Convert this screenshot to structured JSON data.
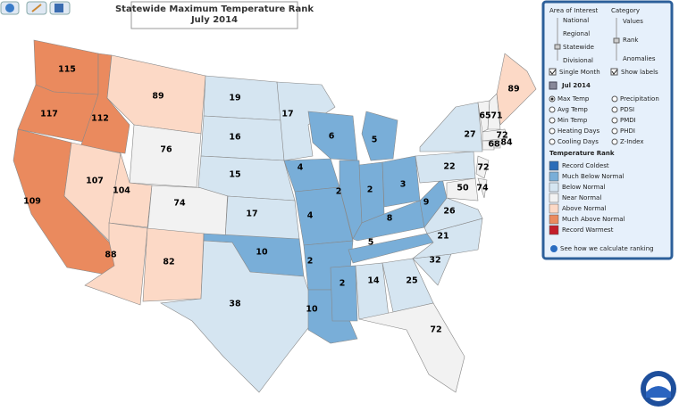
{
  "title": "Statewide Maximum Temperature Rank",
  "subtitle": "July 2014",
  "map": {
    "regions": [
      {
        "value": 115,
        "color": "#ea8a5e"
      },
      {
        "value": 117,
        "color": "#ea8a5e"
      },
      {
        "value": 112,
        "color": "#ea8a5e"
      },
      {
        "value": 109,
        "color": "#ea8a5e"
      },
      {
        "value": 107,
        "color": "#fcd9c6"
      },
      {
        "value": 89,
        "color": "#fcd9c6"
      },
      {
        "value": 76,
        "color": "#f2f2f2"
      },
      {
        "value": 104,
        "color": "#fcd9c6"
      },
      {
        "value": 74,
        "color": "#f2f2f2"
      },
      {
        "value": 88,
        "color": "#fcd9c6"
      },
      {
        "value": 82,
        "color": "#fcd9c6"
      },
      {
        "value": 19,
        "color": "#d5e5f1"
      },
      {
        "value": 16,
        "color": "#d5e5f1"
      },
      {
        "value": 15,
        "color": "#d5e5f1"
      },
      {
        "value": 17,
        "color": "#d5e5f1"
      },
      {
        "value": 10,
        "color": "#79aed8"
      },
      {
        "value": 38,
        "color": "#d5e5f1"
      },
      {
        "value": 17,
        "color": "#d5e5f1"
      },
      {
        "value": 4,
        "color": "#79aed8"
      },
      {
        "value": 4,
        "color": "#79aed8"
      },
      {
        "value": 2,
        "color": "#79aed8"
      },
      {
        "value": 10,
        "color": "#79aed8"
      },
      {
        "value": 6,
        "color": "#79aed8"
      },
      {
        "value": 2,
        "color": "#79aed8"
      },
      {
        "value": 2,
        "color": "#79aed8"
      },
      {
        "value": 5,
        "color": "#79aed8"
      },
      {
        "value": 3,
        "color": "#79aed8"
      },
      {
        "value": 8,
        "color": "#79aed8"
      },
      {
        "value": 5,
        "color": "#79aed8"
      },
      {
        "value": 2,
        "color": "#79aed8"
      },
      {
        "value": 14,
        "color": "#d5e5f1"
      },
      {
        "value": 25,
        "color": "#d5e5f1"
      },
      {
        "value": 72,
        "color": "#f2f2f2"
      },
      {
        "value": 32,
        "color": "#d5e5f1"
      },
      {
        "value": 21,
        "color": "#d5e5f1"
      },
      {
        "value": 26,
        "color": "#d5e5f1"
      },
      {
        "value": 9,
        "color": "#79aed8"
      },
      {
        "value": 22,
        "color": "#d5e5f1"
      },
      {
        "value": 27,
        "color": "#d5e5f1"
      },
      {
        "value": 50,
        "color": "#f2f2f2"
      },
      {
        "value": 74,
        "color": "#f2f2f2"
      },
      {
        "value": 72,
        "color": "#f2f2f2"
      },
      {
        "value": 65,
        "color": "#f2f2f2"
      },
      {
        "value": 71,
        "color": "#f2f2f2"
      },
      {
        "value": 89,
        "color": "#fcd9c6"
      },
      {
        "value": 72,
        "color": "#f2f2f2"
      },
      {
        "value": 68,
        "color": "#f2f2f2"
      },
      {
        "value": 84,
        "color": "#f2f2f2"
      }
    ]
  },
  "panel": {
    "area_of_interest": {
      "label": "Area of Interest",
      "options": [
        "National",
        "Regional",
        "Statewide",
        "Divisional"
      ]
    },
    "category": {
      "label": "Category",
      "options": [
        "Values",
        "Rank",
        "Anomalies"
      ]
    },
    "checks": [
      "Single Month",
      "Show labels"
    ],
    "date": "Jul 2014",
    "parameters": [
      "Max Temp",
      "Avg Temp",
      "Min Temp",
      "Heating Days",
      "Cooling Days",
      "Precipitation",
      "PDSI",
      "PMDI",
      "PHDI",
      "Z-Index"
    ]
  },
  "legend": {
    "title": "Temperature Rank",
    "items": [
      {
        "label": "Record Coldest",
        "color": "#2b6cb8"
      },
      {
        "label": "Much Below Normal",
        "color": "#79aed8"
      },
      {
        "label": "Below Normal",
        "color": "#d5e5f1"
      },
      {
        "label": "Near Normal",
        "color": "#f2f2f2"
      },
      {
        "label": "Above Normal",
        "color": "#fcd9c6"
      },
      {
        "label": "Much Above Normal",
        "color": "#ea8a5e"
      },
      {
        "label": "Record Warmest",
        "color": "#c41e2a"
      }
    ]
  },
  "footer_link": "See how we calculate ranking"
}
